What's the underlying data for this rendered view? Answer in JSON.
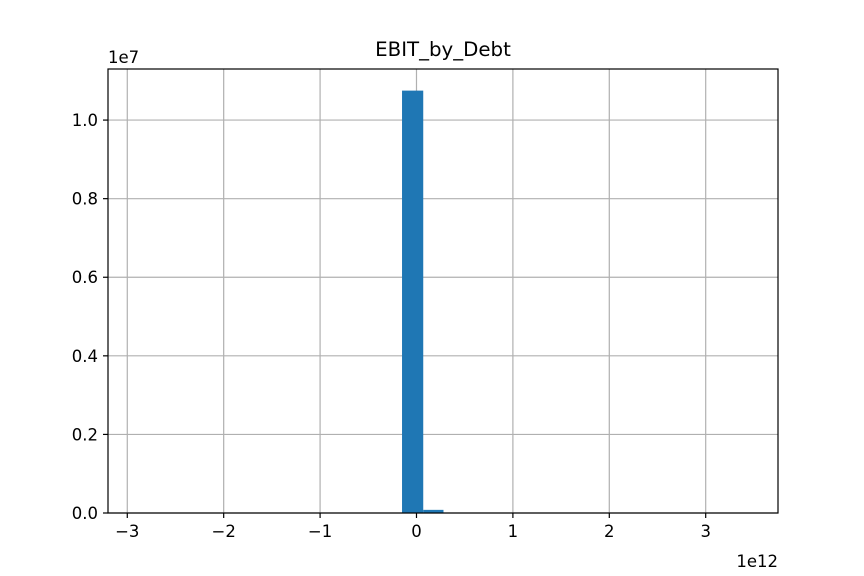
{
  "chart_data": {
    "type": "bar",
    "title": "EBIT_by_Debt",
    "xlabel": "",
    "ylabel": "",
    "x_offset_label": "1e12",
    "y_offset_label": "1e7",
    "x_tick_values": [
      -3,
      -2,
      -1,
      0,
      1,
      2,
      3
    ],
    "x_tick_labels": [
      "−3",
      "−2",
      "−1",
      "0",
      "1",
      "2",
      "3"
    ],
    "y_tick_values": [
      0.0,
      0.2,
      0.4,
      0.6,
      0.8,
      1.0
    ],
    "y_tick_labels": [
      "0.0",
      "0.2",
      "0.4",
      "0.6",
      "0.8",
      "1.0"
    ],
    "xlim": [
      -3.2,
      3.75
    ],
    "ylim": [
      0,
      1.13
    ],
    "grid": true,
    "bar_color": "#1f77b4",
    "bins": [
      {
        "x0": -0.15,
        "x1": 0.07,
        "value": 1.075
      },
      {
        "x0": 0.07,
        "x1": 0.28,
        "value": 0.008
      }
    ]
  }
}
